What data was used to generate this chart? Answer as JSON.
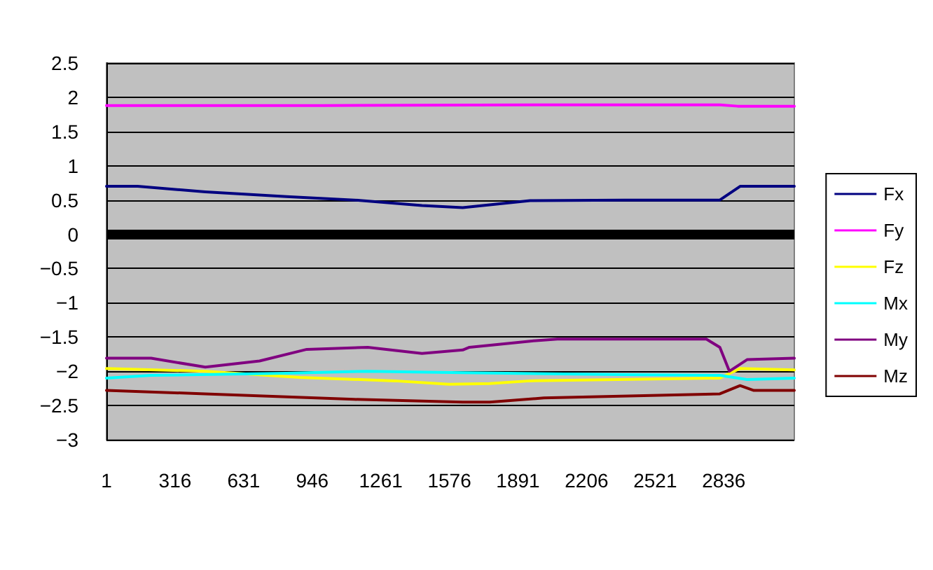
{
  "chart_data": {
    "type": "line",
    "xlim": [
      1,
      3160
    ],
    "xticks": [
      1,
      316,
      631,
      946,
      1261,
      1576,
      1891,
      2206,
      2521,
      2836
    ],
    "ylim": [
      -3,
      2.5
    ],
    "yticks": [
      -3,
      -2.5,
      -2,
      -1.5,
      -1,
      -0.5,
      0,
      0.5,
      1,
      1.5,
      2,
      2.5
    ],
    "grid": "y",
    "legend": "right",
    "marker": "none",
    "line_style": "solid",
    "ref_lines": [
      {
        "axis": "y",
        "value": 0,
        "color": "#000000"
      }
    ],
    "series": [
      {
        "name": "Fx",
        "color": "#000080",
        "x": [
          1,
          144,
          455,
          828,
          1139,
          1450,
          1637,
          1947,
          2383,
          2818,
          2911,
          3160
        ],
        "values": [
          0.7,
          0.7,
          0.62,
          0.55,
          0.5,
          0.42,
          0.39,
          0.49,
          0.5,
          0.5,
          0.7,
          0.7
        ]
      },
      {
        "name": "Fy",
        "color": "#ff00ff",
        "x": [
          1,
          1000,
          2000,
          2818,
          2900,
          3160
        ],
        "values": [
          1.88,
          1.88,
          1.89,
          1.89,
          1.87,
          1.87
        ]
      },
      {
        "name": "Fz",
        "color": "#ffff00",
        "x": [
          1,
          455,
          890,
          1326,
          1574,
          1761,
          1947,
          2818,
          2911,
          3160
        ],
        "values": [
          -1.96,
          -2,
          -2.09,
          -2.14,
          -2.19,
          -2.18,
          -2.14,
          -2.1,
          -1.96,
          -1.98
        ]
      },
      {
        "name": "Mx",
        "color": "#00ffff",
        "x": [
          1,
          206,
          828,
          1201,
          1637,
          2383,
          2818,
          2943,
          3160
        ],
        "values": [
          -2.1,
          -2.06,
          -2.03,
          -2,
          -2.02,
          -2.05,
          -2.06,
          -2.12,
          -2.1
        ]
      },
      {
        "name": "My",
        "color": "#800080",
        "x": [
          1,
          206,
          455,
          704,
          921,
          1201,
          1450,
          1637,
          1668,
          1947,
          2072,
          2756,
          2818,
          2862,
          2943,
          3160
        ],
        "values": [
          -1.81,
          -1.81,
          -1.94,
          -1.85,
          -1.68,
          -1.65,
          -1.74,
          -1.69,
          -1.65,
          -1.56,
          -1.53,
          -1.53,
          -1.65,
          -2,
          -1.83,
          -1.81
        ]
      },
      {
        "name": "Mz",
        "color": "#800000",
        "x": [
          1,
          455,
          1139,
          1637,
          1761,
          2010,
          2818,
          2911,
          2974,
          3160
        ],
        "values": [
          -2.28,
          -2.33,
          -2.41,
          -2.45,
          -2.45,
          -2.39,
          -2.33,
          -2.21,
          -2.28,
          -2.28
        ]
      }
    ]
  }
}
